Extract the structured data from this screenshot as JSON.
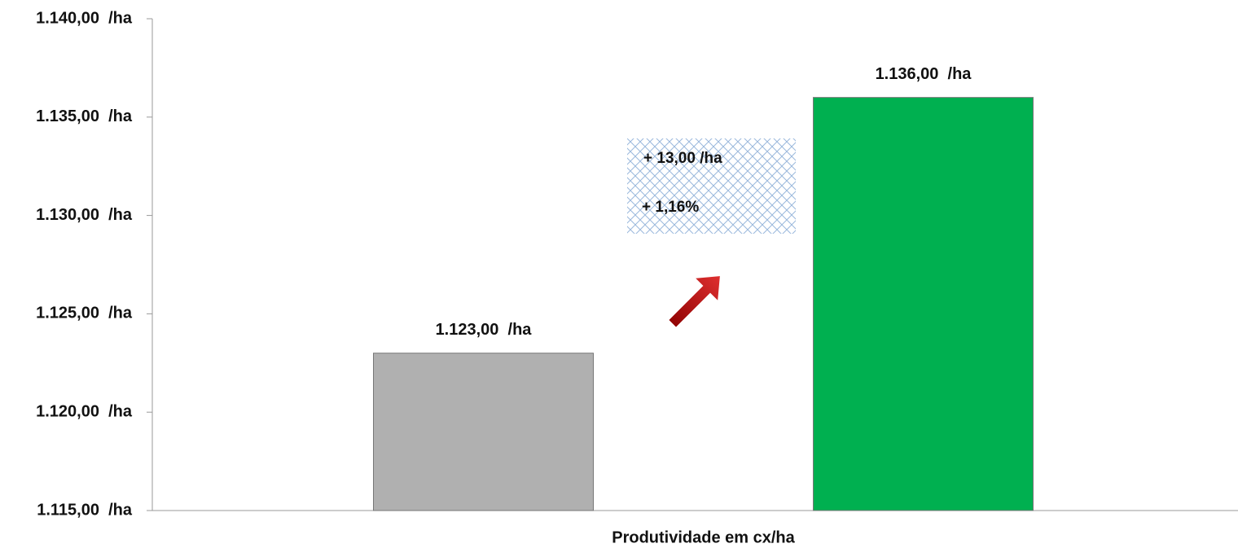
{
  "chart_data": {
    "type": "bar",
    "categories": [
      "Produtividade em cx/ha"
    ],
    "series": [
      {
        "color": "#b0b0b0",
        "values": [
          1123
        ],
        "value_labels": [
          "1.123,00  /ha"
        ]
      },
      {
        "color": "#00b050",
        "values": [
          1136
        ],
        "value_labels": [
          "1.136,00  /ha"
        ]
      }
    ],
    "ylim": [
      1115,
      1140
    ],
    "yticks": [
      {
        "value": 1115,
        "label": "1.115,00  /ha"
      },
      {
        "value": 1120,
        "label": "1.120,00  /ha"
      },
      {
        "value": 1125,
        "label": "1.125,00  /ha"
      },
      {
        "value": 1130,
        "label": "1.130,00  /ha"
      },
      {
        "value": 1135,
        "label": "1.135,00  /ha"
      },
      {
        "value": 1140,
        "label": "1.140,00  /ha"
      }
    ],
    "annotations": [
      "+ 13,00 /ha",
      "+ 1,16%"
    ]
  }
}
